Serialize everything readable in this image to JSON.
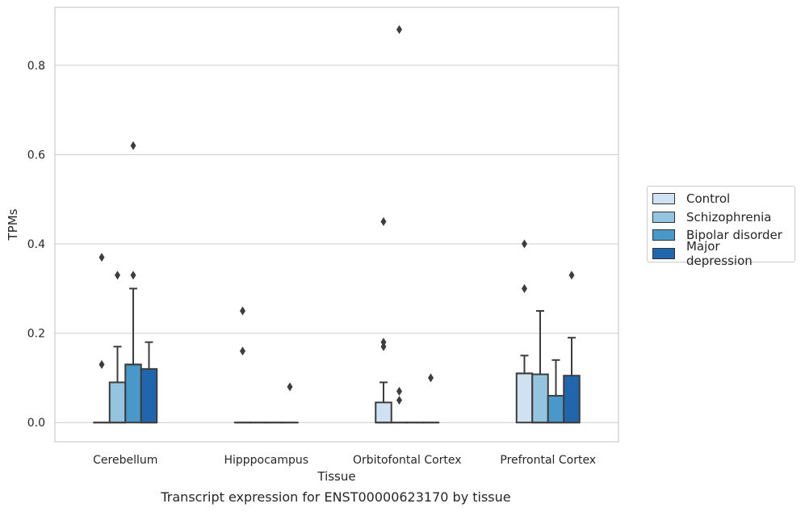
{
  "caption": "Transcript expression for ENST00000623170 by tissue",
  "chart_data": {
    "type": "box",
    "xlabel": "Tissue",
    "ylabel": "TPMs",
    "ylim": [
      -0.043,
      0.93
    ],
    "yticks": [
      0.0,
      0.2,
      0.4,
      0.6,
      0.8
    ],
    "ytick_labels": [
      "0.0",
      "0.2",
      "0.4",
      "0.6",
      "0.8"
    ],
    "grid": "horizontal",
    "legend_position": "outside-right",
    "categories": [
      "Cerebellum",
      "Hipppocampus",
      "Orbitofontal Cortex",
      "Prefrontal Cortex"
    ],
    "series": [
      {
        "name": "Control",
        "color": "#d0e1f2",
        "boxes": [
          {
            "q1": 0,
            "median": 0,
            "q3": 0,
            "whisker_low": 0,
            "whisker_high": 0,
            "outliers": [
              0.13,
              0.37
            ]
          },
          {
            "q1": 0,
            "median": 0,
            "q3": 0,
            "whisker_low": 0,
            "whisker_high": 0,
            "outliers": [
              0.16,
              0.25
            ]
          },
          {
            "q1": 0,
            "median": 0,
            "q3": 0.045,
            "whisker_low": 0,
            "whisker_high": 0.09,
            "outliers": [
              0.17,
              0.18,
              0.45
            ]
          },
          {
            "q1": 0,
            "median": 0.11,
            "q3": 0.11,
            "whisker_low": 0,
            "whisker_high": 0.15,
            "outliers": [
              0.3,
              0.4
            ]
          }
        ]
      },
      {
        "name": "Schizophrenia",
        "color": "#94c4df",
        "boxes": [
          {
            "q1": 0,
            "median": 0,
            "q3": 0.09,
            "whisker_low": 0,
            "whisker_high": 0.17,
            "outliers": [
              0.33
            ]
          },
          {
            "q1": 0,
            "median": 0,
            "q3": 0,
            "whisker_low": 0,
            "whisker_high": 0,
            "outliers": []
          },
          {
            "q1": 0,
            "median": 0,
            "q3": 0,
            "whisker_low": 0,
            "whisker_high": 0,
            "outliers": [
              0.05,
              0.07,
              0.88
            ]
          },
          {
            "q1": 0,
            "median": 0,
            "q3": 0.108,
            "whisker_low": 0,
            "whisker_high": 0.25,
            "outliers": []
          }
        ]
      },
      {
        "name": "Bipolar disorder",
        "color": "#4a98c9",
        "boxes": [
          {
            "q1": 0,
            "median": 0.13,
            "q3": 0.13,
            "whisker_low": 0,
            "whisker_high": 0.3,
            "outliers": [
              0.33,
              0.62
            ]
          },
          {
            "q1": 0,
            "median": 0,
            "q3": 0,
            "whisker_low": 0,
            "whisker_high": 0,
            "outliers": []
          },
          {
            "q1": 0,
            "median": 0,
            "q3": 0,
            "whisker_low": 0,
            "whisker_high": 0,
            "outliers": []
          },
          {
            "q1": 0,
            "median": 0,
            "q3": 0.06,
            "whisker_low": 0,
            "whisker_high": 0.14,
            "outliers": []
          }
        ]
      },
      {
        "name": "Major depression",
        "color": "#2166ac",
        "boxes": [
          {
            "q1": 0,
            "median": 0,
            "q3": 0.12,
            "whisker_low": 0,
            "whisker_high": 0.18,
            "outliers": []
          },
          {
            "q1": 0,
            "median": 0,
            "q3": 0,
            "whisker_low": 0,
            "whisker_high": 0,
            "outliers": [
              0.08
            ]
          },
          {
            "q1": 0,
            "median": 0,
            "q3": 0,
            "whisker_low": 0,
            "whisker_high": 0,
            "outliers": [
              0.1
            ]
          },
          {
            "q1": 0,
            "median": 0,
            "q3": 0.105,
            "whisker_low": 0,
            "whisker_high": 0.19,
            "outliers": [
              0.33
            ]
          }
        ]
      }
    ]
  }
}
